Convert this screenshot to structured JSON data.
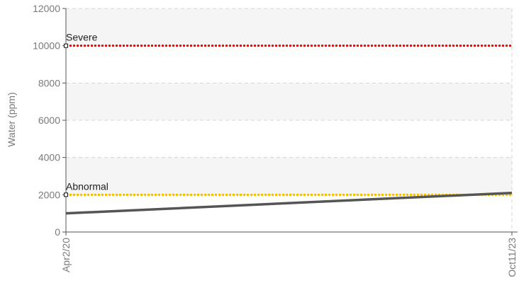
{
  "chart_data": {
    "type": "line",
    "title": "",
    "xlabel": "",
    "ylabel": "Water (ppm)",
    "x": [
      "Apr2/20",
      "Oct11/23"
    ],
    "ylim": [
      0,
      12000
    ],
    "yticks": [
      0,
      2000,
      4000,
      6000,
      8000,
      10000,
      12000
    ],
    "grid": true,
    "legend": "none",
    "series": [
      {
        "values": [
          1000,
          2100
        ],
        "color": "#555555"
      }
    ],
    "reference_lines": [
      {
        "label": "Severe",
        "value": 10000,
        "color": "#ff0000"
      },
      {
        "label": "Abnormal",
        "value": 2000,
        "color": "#f2c200"
      }
    ]
  }
}
